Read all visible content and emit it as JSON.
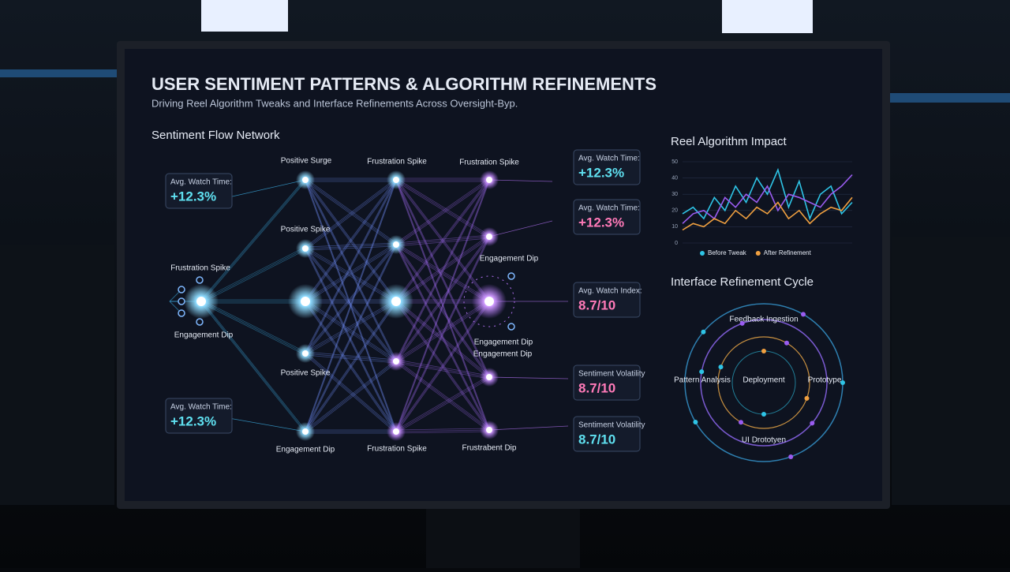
{
  "header": {
    "title": "USER SENTIMENT PATTERNS & ALGORITHM REFINEMENTS",
    "subtitle": "Driving Reel Algorithm Tweaks and Interface Refinements Across Oversight-Byp."
  },
  "network": {
    "title": "Sentiment Flow Network",
    "labels": [
      "Positive Surge",
      "Frustration Spike",
      "Frustration Spike",
      "Positive Spike",
      "Frustration Spike",
      "Engagement Dip",
      "Engagement Dip",
      "Engagement Dip",
      "Engagement Dip",
      "Positive Spike",
      "Engagement Dip",
      "Frustration Spike",
      "Frustrabent Dip"
    ]
  },
  "cards": [
    {
      "label": "Avg. Watch Time:",
      "value": "+12.3%"
    },
    {
      "label": "Avg. Watch Time:",
      "value": "+12.3%"
    },
    {
      "label": "Avg. Watch Time:",
      "value": "+12.3%"
    },
    {
      "label": "Avg. Watch Time:",
      "value": "+12.3%"
    },
    {
      "label": "Avg. Watch Index:",
      "value": "8.7/10"
    },
    {
      "label": "Sentiment Volatility",
      "value": "8.7/10"
    },
    {
      "label": "Sentiment Volatility",
      "value": "8.7/10"
    }
  ],
  "chart_data": {
    "type": "line",
    "title": "Reel Algorithm Impact",
    "ylim": [
      0,
      50
    ],
    "yticks": [
      0,
      10,
      20,
      30,
      40,
      50
    ],
    "grid": true,
    "series": [
      {
        "name": "Before Tweak",
        "color": "#2ec4e6",
        "values": [
          18,
          22,
          15,
          28,
          20,
          35,
          25,
          40,
          30,
          45,
          22,
          38,
          15,
          30,
          35,
          18,
          25
        ]
      },
      {
        "color": "#9a5cf0",
        "values": [
          12,
          18,
          20,
          15,
          28,
          22,
          30,
          25,
          35,
          20,
          30,
          28,
          25,
          22,
          30,
          35,
          42
        ]
      },
      {
        "name": "After Refinement",
        "color": "#f0a040",
        "values": [
          8,
          12,
          10,
          15,
          12,
          20,
          15,
          22,
          18,
          25,
          15,
          20,
          12,
          18,
          22,
          20,
          28
        ]
      }
    ]
  },
  "cycle": {
    "title": "Interface Refinement Cycle",
    "center": "Deployment",
    "stages": [
      "Feedback Ingestion",
      "Prototype",
      "UI Drototyen",
      "Pattern Analysis"
    ]
  }
}
